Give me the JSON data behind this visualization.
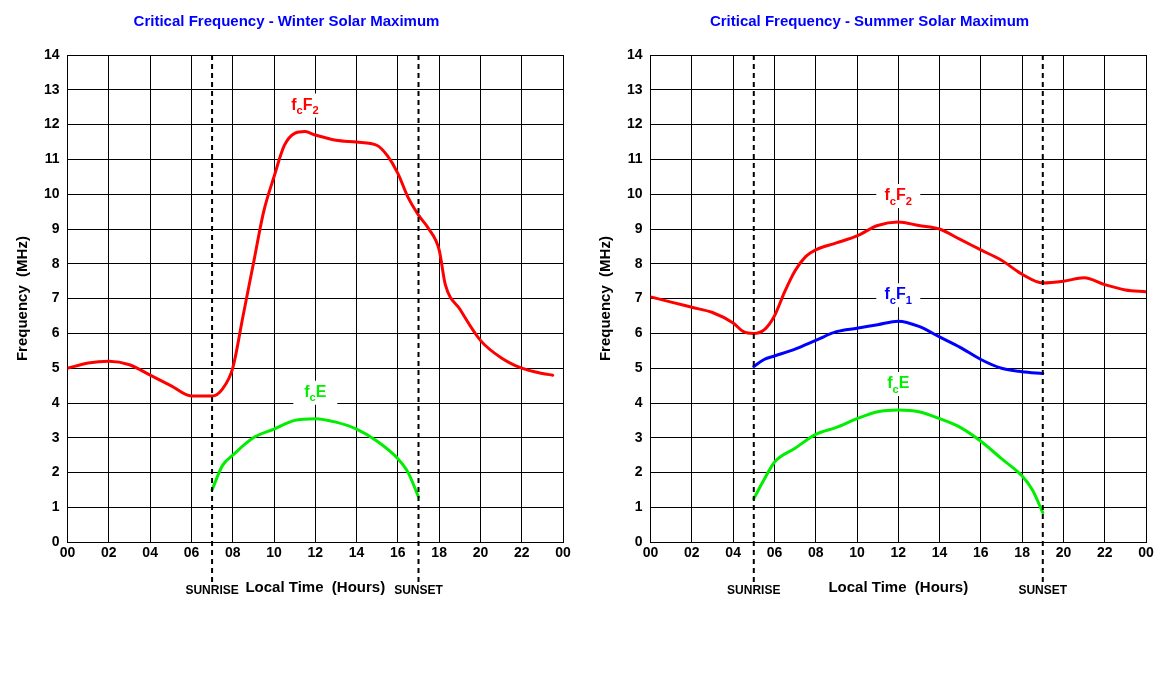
{
  "chart_data": [
    {
      "type": "line",
      "title": "Critical Frequency - Winter Solar Maximum",
      "xlabel": "Local Time  (Hours)",
      "ylabel": "Frequency  (MHz)",
      "xlim": [
        0,
        24
      ],
      "ylim": [
        0,
        14
      ],
      "xticks": [
        {
          "value": 0,
          "label": "00"
        },
        {
          "value": 2,
          "label": "02"
        },
        {
          "value": 4,
          "label": "04"
        },
        {
          "value": 6,
          "label": "06"
        },
        {
          "value": 8,
          "label": "08"
        },
        10,
        12,
        14,
        16,
        18,
        20,
        22,
        {
          "value": 24,
          "label": "00"
        }
      ],
      "yticks": [
        0,
        1,
        2,
        3,
        4,
        5,
        6,
        7,
        8,
        9,
        10,
        11,
        12,
        13,
        14
      ],
      "grid": true,
      "legend": false,
      "marker": "none",
      "line_style": "solid",
      "series": [
        {
          "name": "f$_{c}$F$_{2}$",
          "color": "#ff0000",
          "x": [
            0,
            1,
            2,
            3,
            4,
            5,
            6,
            7,
            7.5,
            8,
            8.5,
            9,
            9.5,
            10,
            10.5,
            11,
            11.5,
            12,
            13,
            14,
            15,
            15.5,
            16,
            16.5,
            17,
            17.5,
            18,
            18.3,
            19,
            20,
            21,
            22,
            23,
            23.5
          ],
          "values": [
            5.0,
            5.15,
            5.2,
            5.1,
            4.8,
            4.5,
            4.2,
            4.2,
            4.4,
            5.0,
            6.5,
            8.0,
            9.5,
            10.5,
            11.4,
            11.75,
            11.8,
            11.7,
            11.55,
            11.5,
            11.4,
            11.1,
            10.6,
            9.9,
            9.4,
            9.0,
            8.4,
            7.4,
            6.7,
            5.8,
            5.3,
            5.0,
            4.85,
            4.8
          ]
        },
        {
          "name": "f$_{c}$E",
          "color": "#00ee00",
          "x": [
            7,
            7.5,
            8,
            9,
            10,
            11,
            12,
            13,
            14,
            15,
            16,
            16.5,
            17
          ],
          "values": [
            1.5,
            2.2,
            2.5,
            3.0,
            3.25,
            3.5,
            3.55,
            3.45,
            3.25,
            2.9,
            2.4,
            2.0,
            1.3
          ]
        }
      ],
      "ref_lines": [
        {
          "axis": "x",
          "value": 7,
          "label": "SUNRISE",
          "color": "#000000",
          "line_style": "dashed"
        },
        {
          "axis": "x",
          "value": 17,
          "label": "SUNSET",
          "color": "#000000",
          "line_style": "dashed"
        }
      ]
    },
    {
      "type": "line",
      "title": "Critical Frequency - Summer Solar Maximum",
      "xlabel": "Local Time  (Hours)",
      "ylabel": "Frequency  (MHz)",
      "xlim": [
        0,
        24
      ],
      "ylim": [
        0,
        14
      ],
      "xticks": [
        {
          "value": 0,
          "label": "00"
        },
        {
          "value": 2,
          "label": "02"
        },
        {
          "value": 4,
          "label": "04"
        },
        {
          "value": 6,
          "label": "06"
        },
        {
          "value": 8,
          "label": "08"
        },
        10,
        12,
        14,
        16,
        18,
        20,
        22,
        {
          "value": 24,
          "label": "00"
        }
      ],
      "yticks": [
        0,
        1,
        2,
        3,
        4,
        5,
        6,
        7,
        8,
        9,
        10,
        11,
        12,
        13,
        14
      ],
      "grid": true,
      "legend": false,
      "marker": "none",
      "line_style": "solid",
      "series": [
        {
          "name": "f$_{c}$F$_{2}$",
          "color": "#ff0000",
          "x": [
            0,
            1,
            2,
            3,
            4,
            4.5,
            5,
            5.5,
            6,
            6.5,
            7,
            7.5,
            8,
            9,
            10,
            11,
            12,
            13,
            14,
            15,
            16,
            17,
            18,
            19,
            20,
            21,
            22,
            23,
            24
          ],
          "values": [
            7.05,
            6.9,
            6.75,
            6.6,
            6.3,
            6.05,
            6.0,
            6.1,
            6.5,
            7.2,
            7.8,
            8.2,
            8.4,
            8.6,
            8.8,
            9.1,
            9.2,
            9.1,
            9.0,
            8.7,
            8.4,
            8.1,
            7.7,
            7.45,
            7.5,
            7.6,
            7.4,
            7.25,
            7.2
          ]
        },
        {
          "name": "f$_{c}$F$_{1}$",
          "color": "#0000ff",
          "x": [
            5,
            5.5,
            6,
            7,
            8,
            9,
            10,
            11,
            12,
            13,
            14,
            15,
            16,
            17,
            18,
            19
          ],
          "values": [
            5.05,
            5.25,
            5.35,
            5.55,
            5.8,
            6.05,
            6.15,
            6.25,
            6.35,
            6.2,
            5.9,
            5.6,
            5.25,
            5.0,
            4.9,
            4.85
          ]
        },
        {
          "name": "f$_{c}$E",
          "color": "#00ee00",
          "x": [
            5,
            5.5,
            6,
            7,
            8,
            9,
            10,
            11,
            12,
            13,
            14,
            15,
            16,
            17,
            18,
            18.5,
            19
          ],
          "values": [
            1.25,
            1.8,
            2.3,
            2.7,
            3.1,
            3.3,
            3.55,
            3.75,
            3.8,
            3.75,
            3.55,
            3.3,
            2.9,
            2.4,
            1.9,
            1.5,
            0.85
          ]
        }
      ],
      "ref_lines": [
        {
          "axis": "x",
          "value": 5,
          "label": "SUNRISE",
          "color": "#000000",
          "line_style": "dashed"
        },
        {
          "axis": "x",
          "value": 19,
          "label": "SUNSET",
          "color": "#000000",
          "line_style": "dashed"
        }
      ]
    }
  ]
}
